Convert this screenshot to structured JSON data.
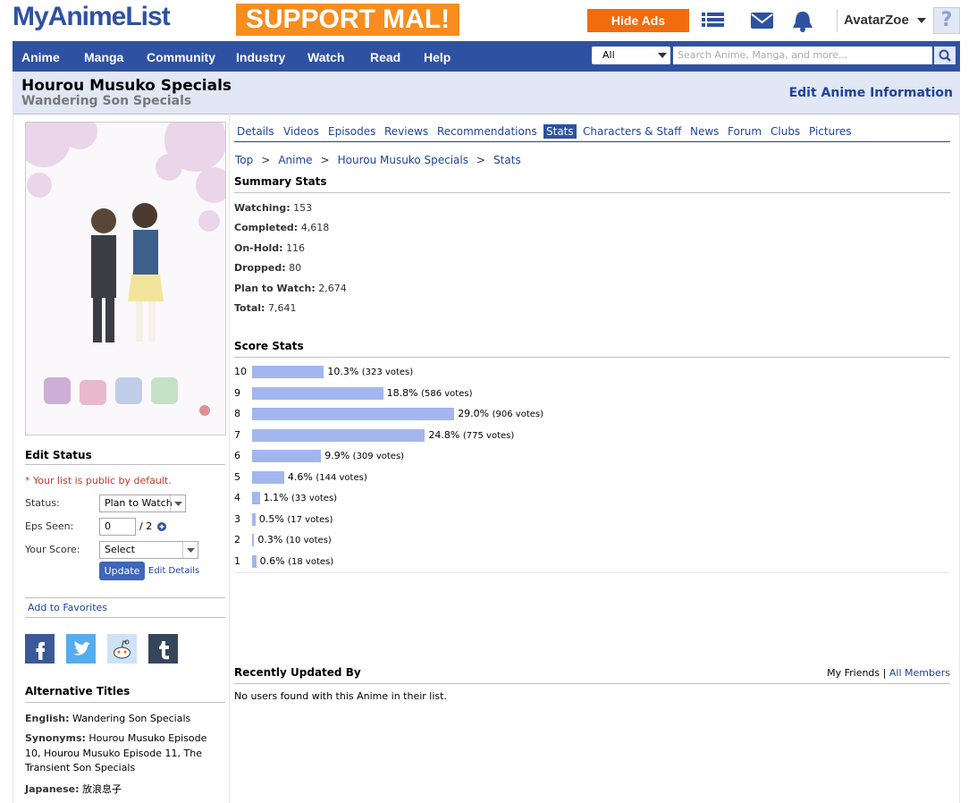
{
  "header": {
    "logo": "MyAnimeList",
    "banner": "SUPPORT MAL!",
    "hide_ads": "Hide Ads",
    "username": "AvatarZoe",
    "avatar_placeholder": "?"
  },
  "nav": {
    "items": [
      "Anime",
      "Manga",
      "Community",
      "Industry",
      "Watch",
      "Read",
      "Help"
    ],
    "search_scope": "All",
    "search_placeholder": "Search Anime, Manga, and more..."
  },
  "title": {
    "main": "Hourou Musuko Specials",
    "english": "Wandering Son Specials",
    "edit_link": "Edit Anime Information"
  },
  "tabs": {
    "items": [
      "Details",
      "Videos",
      "Episodes",
      "Reviews",
      "Recommendations",
      "Stats",
      "Characters & Staff",
      "News",
      "Forum",
      "Clubs",
      "Pictures"
    ],
    "active": 5
  },
  "breadcrumb": {
    "items": [
      "Top",
      "Anime",
      "Hourou Musuko Specials",
      "Stats"
    ],
    "separator": ">"
  },
  "summary": {
    "heading": "Summary Stats",
    "rows": [
      {
        "label": "Watching:",
        "value": "153"
      },
      {
        "label": "Completed:",
        "value": "4,618"
      },
      {
        "label": "On-Hold:",
        "value": "116"
      },
      {
        "label": "Dropped:",
        "value": "80"
      },
      {
        "label": "Plan to Watch:",
        "value": "2,674"
      },
      {
        "label": "Total:",
        "value": "7,641"
      }
    ]
  },
  "score": {
    "heading": "Score Stats",
    "categories": [
      "10",
      "9",
      "8",
      "7",
      "6",
      "5",
      "4",
      "3",
      "2",
      "1"
    ],
    "values": [
      10.3,
      18.8,
      29.0,
      24.8,
      9.9,
      4.6,
      1.1,
      0.5,
      0.3,
      0.6
    ],
    "value_labels": [
      "10.3%",
      "18.8%",
      "29.0%",
      "24.8%",
      "9.9%",
      "4.6%",
      "1.1%",
      "0.5%",
      "0.3%",
      "0.6%"
    ],
    "votes": [
      "(323 votes)",
      "(586 votes)",
      "(906 votes)",
      "(775 votes)",
      "(309 votes)",
      "(144 votes)",
      "(33 votes)",
      "(17 votes)",
      "(10 votes)",
      "(18 votes)"
    ],
    "color": "#a3b6ee"
  },
  "recent": {
    "heading": "Recently Updated By",
    "my_friends": "My Friends",
    "separator": "|",
    "all_members": "All Members",
    "empty": "No users found with this Anime in their list."
  },
  "sidebar": {
    "edit_status": {
      "heading": "Edit Status",
      "note": "* Your list is public by default.",
      "status_label": "Status:",
      "status_value": "Plan to Watch",
      "eps_label": "Eps Seen:",
      "eps_value": "0",
      "eps_total": "/ 2",
      "score_label": "Your Score:",
      "score_value": "Select",
      "update": "Update",
      "edit_details": "Edit Details"
    },
    "add_favorites": "Add to Favorites",
    "alt_titles": {
      "heading": "Alternative Titles",
      "rows": [
        {
          "label": "English:",
          "value": "Wandering Son Specials"
        },
        {
          "label": "Synonyms:",
          "value": "Hourou Musuko Episode 10, Hourou Musuko Episode 11, The Transient Son Specials"
        },
        {
          "label": "Japanese:",
          "value": "放浪息子"
        }
      ]
    }
  }
}
